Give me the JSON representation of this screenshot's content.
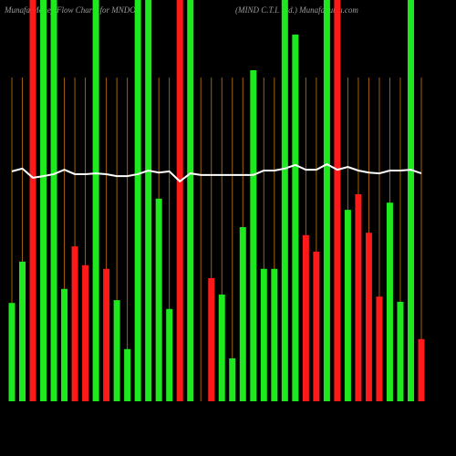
{
  "chart_data": {
    "type": "bar",
    "title": "Munafa Money Flow Charts for MNDO",
    "subtitle": "(MIND C.T.I. Ltd.) MunafaSutra.com",
    "categories": [
      null,
      null,
      null,
      null,
      null,
      null,
      null,
      null,
      null,
      null,
      null,
      null,
      null,
      null,
      null,
      null,
      null,
      null,
      null,
      null,
      null,
      null,
      null,
      null,
      null,
      null,
      null,
      null,
      null,
      null,
      null,
      null,
      null,
      null,
      null,
      null,
      null,
      null,
      null,
      null
    ],
    "values": [
      24.5,
      34.8,
      100,
      100,
      100,
      28.0,
      38.6,
      33.9,
      100,
      33.0,
      25.2,
      13.0,
      100,
      100,
      50.5,
      23.0,
      100,
      100,
      0,
      30.7,
      26.6,
      10.7,
      43.4,
      82.5,
      33.0,
      33.0,
      100,
      91.4,
      41.4,
      37.3,
      100,
      100,
      47.7,
      51.6,
      42.0,
      26.1,
      49.5,
      24.8,
      100,
      15.5
    ],
    "colors": [
      "#1ee81e",
      "#1ee81e",
      "#ff1a1a",
      "#1ee81e",
      "#1ee81e",
      "#1ee81e",
      "#ff1a1a",
      "#ff1a1a",
      "#1ee81e",
      "#ff1a1a",
      "#1ee81e",
      "#1ee81e",
      "#1ee81e",
      "#1ee81e",
      "#1ee81e",
      "#1ee81e",
      "#ff1a1a",
      "#1ee81e",
      "#1ee81e",
      "#ff1a1a",
      "#1ee81e",
      "#1ee81e",
      "#1ee81e",
      "#1ee81e",
      "#1ee81e",
      "#1ee81e",
      "#1ee81e",
      "#1ee81e",
      "#ff1a1a",
      "#ff1a1a",
      "#1ee81e",
      "#ff1a1a",
      "#1ee81e",
      "#ff1a1a",
      "#ff1a1a",
      "#ff1a1a",
      "#1ee81e",
      "#1ee81e",
      "#1ee81e",
      "#ff1a1a"
    ],
    "line_values": [
      57.3,
      58.0,
      55.7,
      56.1,
      56.6,
      57.7,
      56.6,
      56.6,
      56.8,
      56.6,
      56.1,
      56.1,
      56.6,
      57.5,
      57.0,
      57.3,
      54.8,
      56.8,
      56.4,
      56.4,
      56.4,
      56.4,
      56.4,
      56.4,
      57.5,
      57.5,
      58.0,
      58.9,
      57.7,
      57.7,
      59.1,
      57.7,
      58.4,
      57.5,
      57.0,
      56.8,
      57.5,
      57.5,
      57.7,
      56.8
    ],
    "line_color": "#ffffff",
    "ylim": [
      0,
      100
    ],
    "grid": true,
    "grid_color": "#a0620c"
  }
}
